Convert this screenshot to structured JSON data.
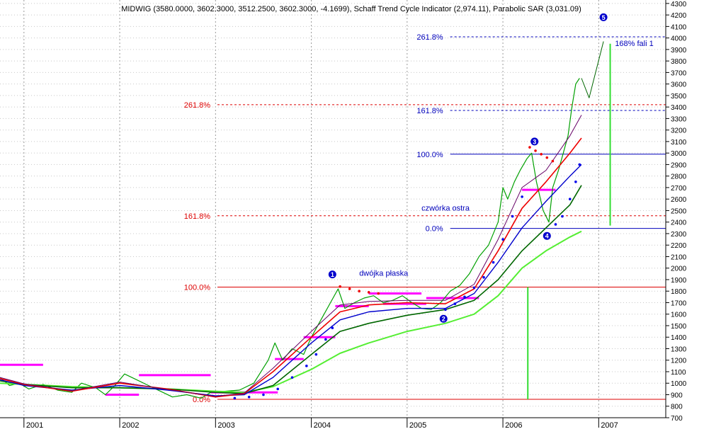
{
  "chart_data": {
    "type": "line",
    "title": "MIDWIG (3580.0000, 3602.3000, 3512.2500, 3602.3000, -4.1699), Schaff Trend Cycle Indicator (2,974.11), Parabolic SAR (3,031.09)",
    "x_tick_labels": [
      "2001",
      "2002",
      "2003",
      "2004",
      "2005",
      "2006",
      "2007"
    ],
    "y_tick_labels": [
      700,
      800,
      900,
      1000,
      1100,
      1200,
      1300,
      1400,
      1500,
      1600,
      1700,
      1800,
      1900,
      2000,
      2100,
      2200,
      2300,
      2400,
      2500,
      2600,
      2700,
      2800,
      2900,
      3000,
      3100,
      3200,
      3300,
      3400,
      3500,
      3600,
      3700,
      3800,
      3900,
      4000,
      4100,
      4200,
      4300
    ],
    "xlim": [
      2000.75,
      2007.7
    ],
    "ylim": [
      700,
      4330
    ],
    "grid": true,
    "colors": {
      "price": "#00a000",
      "sma_long": "#55ee33",
      "sma_mid": "#006600",
      "blue_avg": "#0000cc",
      "red_avg": "#ee0000",
      "purple_avg": "#660066",
      "sar_up": "#0000ee",
      "sar_down": "#ee0000",
      "consolidation": "#ff00ff",
      "fib_red": "#dd0000",
      "fib_blue": "#0000bb"
    },
    "series": [
      {
        "style": "price",
        "x": [
          2000.75,
          2000.85,
          2000.95,
          2001.05,
          2001.2,
          2001.35,
          2001.5,
          2001.6,
          2001.75,
          2001.85,
          2001.95,
          2002.05,
          2002.15,
          2002.3,
          2002.45,
          2002.55,
          2002.7,
          2002.85,
          2002.95,
          2003.1,
          2003.25,
          2003.4,
          2003.55,
          2003.62,
          2003.7,
          2003.8,
          2003.92,
          2004.0,
          2004.1,
          2004.2,
          2004.28,
          2004.35,
          2004.45,
          2004.55,
          2004.65,
          2004.75,
          2004.85,
          2004.95,
          2005.05,
          2005.15,
          2005.25,
          2005.35,
          2005.45,
          2005.55,
          2005.65,
          2005.75,
          2005.85,
          2005.95,
          2006.0,
          2006.05,
          2006.12,
          2006.18,
          2006.25,
          2006.3,
          2006.35,
          2006.42,
          2006.48,
          2006.52,
          2006.58,
          2006.63,
          2006.68,
          2006.72,
          2006.76,
          2006.8
        ],
        "values": [
          1050,
          980,
          1000,
          950,
          990,
          940,
          920,
          1000,
          960,
          900,
          980,
          1080,
          1040,
          980,
          920,
          880,
          900,
          870,
          920,
          930,
          940,
          1000,
          1200,
          1350,
          1200,
          1300,
          1250,
          1400,
          1550,
          1700,
          1820,
          1650,
          1700,
          1740,
          1760,
          1700,
          1720,
          1760,
          1700,
          1650,
          1640,
          1700,
          1800,
          1850,
          1950,
          2100,
          2200,
          2400,
          2700,
          2600,
          2750,
          2850,
          2950,
          3000,
          2750,
          2500,
          2400,
          2700,
          2850,
          3000,
          3150,
          3400,
          3600,
          3650
        ]
      },
      {
        "style": "sma_long",
        "x": [
          2000.75,
          2001.0,
          2001.5,
          2002.0,
          2002.5,
          2003.0,
          2003.3,
          2003.6,
          2004.0,
          2004.3,
          2004.6,
          2005.0,
          2005.4,
          2005.7,
          2005.95,
          2006.2,
          2006.45,
          2006.7,
          2006.82
        ],
        "values": [
          1000,
          990,
          970,
          960,
          950,
          930,
          920,
          970,
          1120,
          1260,
          1350,
          1450,
          1520,
          1600,
          1760,
          2000,
          2150,
          2270,
          2320
        ]
      },
      {
        "style": "sma_mid",
        "x": [
          2000.75,
          2001.0,
          2001.5,
          2002.0,
          2002.5,
          2003.0,
          2003.3,
          2003.6,
          2004.0,
          2004.3,
          2004.6,
          2005.0,
          2005.4,
          2005.7,
          2005.95,
          2006.2,
          2006.45,
          2006.7,
          2006.82
        ],
        "values": [
          1020,
          990,
          960,
          960,
          950,
          920,
          910,
          980,
          1250,
          1450,
          1520,
          1590,
          1640,
          1720,
          1900,
          2150,
          2350,
          2550,
          2720
        ]
      },
      {
        "style": "blue_avg",
        "x": [
          2000.75,
          2001.0,
          2001.5,
          2002.0,
          2002.5,
          2003.0,
          2003.3,
          2003.6,
          2004.0,
          2004.3,
          2004.6,
          2005.0,
          2005.4,
          2005.7,
          2005.95,
          2006.2,
          2006.45,
          2006.7,
          2006.82
        ],
        "values": [
          1030,
          980,
          940,
          980,
          940,
          890,
          900,
          1050,
          1350,
          1550,
          1620,
          1650,
          1650,
          1780,
          2050,
          2350,
          2580,
          2800,
          2900
        ]
      },
      {
        "style": "red_avg",
        "x": [
          2000.75,
          2001.0,
          2001.5,
          2002.0,
          2002.5,
          2003.0,
          2003.3,
          2003.6,
          2004.0,
          2004.3,
          2004.6,
          2005.0,
          2005.4,
          2005.7,
          2005.95,
          2006.2,
          2006.45,
          2006.7,
          2006.82
        ],
        "values": [
          1040,
          990,
          930,
          1000,
          950,
          880,
          910,
          1100,
          1400,
          1620,
          1680,
          1700,
          1690,
          1820,
          2150,
          2520,
          2750,
          3000,
          3130
        ]
      },
      {
        "style": "purple_avg",
        "x": [
          2000.75,
          2001.0,
          2001.5,
          2002.0,
          2002.5,
          2003.0,
          2003.3,
          2003.6,
          2004.0,
          2004.3,
          2004.6,
          2005.0,
          2005.4,
          2005.7,
          2005.95,
          2006.2,
          2006.45,
          2006.7,
          2006.82
        ],
        "values": [
          1050,
          995,
          935,
          1010,
          945,
          885,
          915,
          1130,
          1450,
          1680,
          1710,
          1720,
          1720,
          1860,
          2250,
          2700,
          2850,
          3150,
          3330
        ]
      },
      {
        "style": "sar_up",
        "x": [
          2003.2,
          2003.35,
          2003.5,
          2003.65,
          2003.8,
          2003.95,
          2004.05,
          2004.15,
          2004.22,
          2005.4,
          2005.5,
          2005.6,
          2005.7,
          2005.8,
          2005.9,
          2006.0,
          2006.1,
          2006.2,
          2006.55,
          2006.62,
          2006.7,
          2006.76,
          2006.8
        ],
        "values": [
          870,
          880,
          900,
          950,
          1050,
          1150,
          1250,
          1380,
          1480,
          1640,
          1690,
          1750,
          1830,
          1920,
          2050,
          2250,
          2450,
          2620,
          2380,
          2450,
          2600,
          2750,
          2900
        ]
      },
      {
        "style": "sar_down",
        "x": [
          2004.3,
          2004.4,
          2004.5,
          2004.6,
          2004.7,
          2006.28,
          2006.34,
          2006.4,
          2006.46,
          2006.52
        ],
        "values": [
          1840,
          1820,
          1800,
          1790,
          1780,
          3050,
          3020,
          2990,
          2960,
          2930
        ]
      },
      {
        "style": "projection",
        "x": [
          2006.82,
          2006.9,
          2007.05
        ],
        "values": [
          3650,
          3480,
          3970
        ]
      }
    ],
    "fib_red": [
      {
        "label": "0.0%",
        "value": 860
      },
      {
        "label": "100.0%",
        "value": 1835
      },
      {
        "label": "161.8%",
        "value": 2455
      },
      {
        "label": "261.8%",
        "value": 3420
      }
    ],
    "fib_blue": [
      {
        "label": "0.0%",
        "value": 2345
      },
      {
        "label": "100.0%",
        "value": 2990
      },
      {
        "label": "161.8%",
        "value": 3370
      },
      {
        "label": "261.8%",
        "value": 4010
      }
    ],
    "consolidation_bars": [
      {
        "x1": 2000.75,
        "x2": 2001.2,
        "value": 1160
      },
      {
        "x1": 2002.2,
        "x2": 2002.95,
        "value": 1070
      },
      {
        "x1": 2001.85,
        "x2": 2002.2,
        "value": 900
      },
      {
        "x1": 2002.95,
        "x2": 2003.65,
        "value": 920
      },
      {
        "x1": 2003.62,
        "x2": 2003.92,
        "value": 1210
      },
      {
        "x1": 2003.92,
        "x2": 2004.25,
        "value": 1400
      },
      {
        "x1": 2004.25,
        "x2": 2004.6,
        "value": 1670
      },
      {
        "x1": 2004.6,
        "x2": 2005.15,
        "value": 1780
      },
      {
        "x1": 2004.75,
        "x2": 2005.2,
        "value": 1690
      },
      {
        "x1": 2005.2,
        "x2": 2005.75,
        "value": 1740
      },
      {
        "x1": 2006.2,
        "x2": 2006.55,
        "value": 2680
      }
    ],
    "wave_markers": [
      {
        "label": "1",
        "x": 2004.22,
        "value": 1945
      },
      {
        "label": "2",
        "x": 2005.38,
        "value": 1560
      },
      {
        "label": "3",
        "x": 2006.33,
        "value": 3100
      },
      {
        "label": "4",
        "x": 2006.46,
        "value": 2280
      },
      {
        "label": "5",
        "x": 2007.05,
        "value": 4180
      }
    ],
    "annotations": [
      {
        "text": "dwójka płaska",
        "x": 2004.5,
        "value": 1935
      },
      {
        "text": "czwórka ostra",
        "x": 2005.15,
        "value": 2500
      },
      {
        "text": "168% fali 1",
        "x": 2007.17,
        "value": 3930
      }
    ],
    "vertical_lines": [
      {
        "x": 2006.26,
        "y1": 860,
        "y2": 1835
      },
      {
        "x": 2007.12,
        "y1": 2370,
        "y2": 3950
      }
    ]
  }
}
